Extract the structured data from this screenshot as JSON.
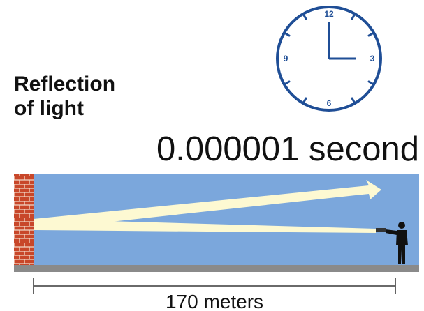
{
  "title": {
    "line1": "Reflection",
    "line2": "of light"
  },
  "clock": {
    "numbers": {
      "twelve": "12",
      "three": "3",
      "six": "6",
      "nine": "9"
    }
  },
  "time": "0.000001 second",
  "distance": "170 meters"
}
